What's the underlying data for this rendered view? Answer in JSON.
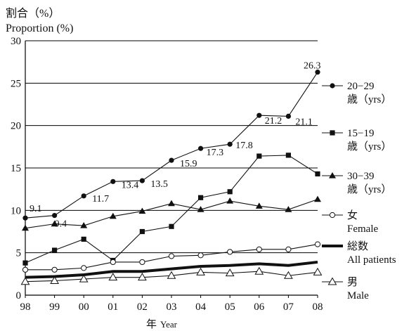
{
  "chart_data": {
    "type": "line",
    "ylabel_ja": "割合（%）",
    "ylabel_en": "Proportion (%)",
    "xlabel_ja": "年",
    "xlabel_en": "Year",
    "ylim": [
      0,
      30
    ],
    "yticks": [
      0,
      5,
      10,
      15,
      20,
      25,
      30
    ],
    "categories": [
      "98",
      "99",
      "00",
      "01",
      "02",
      "03",
      "04",
      "05",
      "06",
      "07",
      "08"
    ],
    "grid": "horizontal",
    "legend_position": "right",
    "series": [
      {
        "key": "age20_29",
        "legend_line1": "20−29",
        "legend_line2": "歳（yrs）",
        "marker": "filled-circle",
        "values": [
          9.1,
          9.4,
          11.7,
          13.4,
          13.5,
          15.9,
          17.3,
          17.8,
          21.2,
          21.1,
          26.3
        ],
        "labels": [
          "9.1",
          "9.4",
          "11.7",
          "13.4",
          "13.5",
          "15.9",
          "17.3",
          "17.8",
          "21.2",
          "21.1",
          "26.3"
        ]
      },
      {
        "key": "age15_19",
        "legend_line1": "15−19",
        "legend_line2": "歳（yrs）",
        "marker": "filled-square",
        "values": [
          3.8,
          5.3,
          6.6,
          4.1,
          7.5,
          8.1,
          11.5,
          12.2,
          16.4,
          16.5,
          14.3
        ]
      },
      {
        "key": "age30_39",
        "legend_line1": "30−39",
        "legend_line2": "歳（yrs）",
        "marker": "filled-triangle",
        "values": [
          7.9,
          8.4,
          8.2,
          9.3,
          9.9,
          10.8,
          10.1,
          11.1,
          10.5,
          10.1,
          11.3
        ]
      },
      {
        "key": "female",
        "legend_line1": "女",
        "legend_line2": "Female",
        "marker": "open-circle",
        "values": [
          3.0,
          3.0,
          3.2,
          3.9,
          3.9,
          4.6,
          4.7,
          5.1,
          5.4,
          5.4,
          6.0
        ]
      },
      {
        "key": "all",
        "legend_line1": "総数",
        "legend_line2": "All patients",
        "marker": "none",
        "line_width": "thick",
        "values": [
          2.1,
          2.2,
          2.4,
          2.8,
          2.8,
          3.1,
          3.4,
          3.5,
          3.7,
          3.5,
          3.9
        ]
      },
      {
        "key": "male",
        "legend_line1": "男",
        "legend_line2": "Male",
        "marker": "open-triangle",
        "values": [
          1.6,
          1.7,
          1.9,
          2.1,
          2.1,
          2.3,
          2.7,
          2.6,
          2.8,
          2.3,
          2.7
        ]
      }
    ]
  }
}
